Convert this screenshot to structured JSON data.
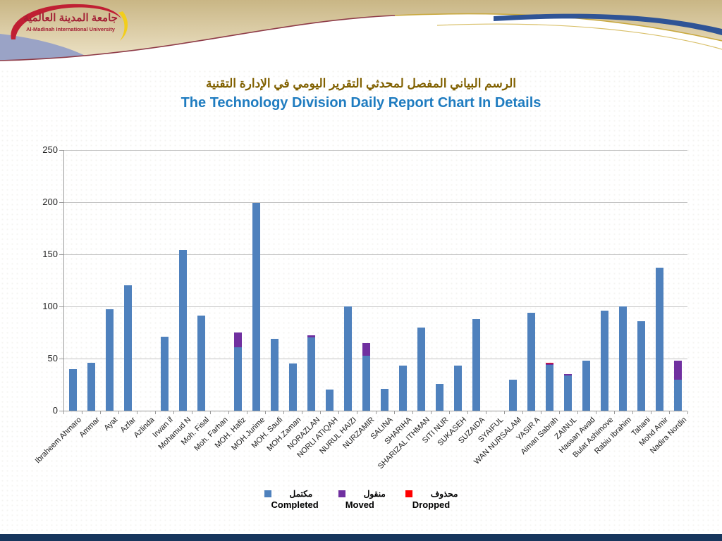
{
  "header": {
    "logo_arabic": "جامعة المدينة العالمية",
    "logo_english": "Al-Madinah International University"
  },
  "title": {
    "arabic": "الرسم البياني المفصل لمحدثي التقرير اليومي في الإدارة التقنية",
    "english": "The Technology Division Daily Report Chart In Details"
  },
  "chart_data": {
    "type": "bar",
    "stacked": true,
    "grid": true,
    "legend_position": "bottom",
    "ylim": [
      0,
      250
    ],
    "yticks": [
      0,
      50,
      100,
      150,
      200,
      250
    ],
    "categories": [
      "Ibraheem Ahmaro",
      "Ammar",
      "Ayat",
      "Azfar",
      "Azlinda",
      "Irwan if",
      "Mohamud N",
      "Moh. Fisal",
      "Moh. Farhan",
      "MOH. Hafiz",
      "MOH.Jurime",
      "MOH. Saufi",
      "MOH.Zaman",
      "NORAZLAN",
      "NORLI ATIQAH",
      "NURUL HAIZI",
      "NURZAMIR",
      "SALINA",
      "SHARIHA",
      "SHARIZAL ITHMAN",
      "SITI NUR",
      "SUKASEH",
      "SUZAIDA",
      "SYAIFUL",
      "WAN NURSALAM",
      "YASIR A",
      "Aiman Sabrah",
      "ZAINUL",
      "Hassan Awad",
      "Bulat Ashimove",
      "Rabiu Ibrahim",
      "Tahani",
      "Mohd Amir",
      "Nadira Nordin"
    ],
    "series": [
      {
        "name": "Completed",
        "name_arabic": "مكتمل",
        "color": "#4F81BD",
        "values": [
          40,
          46,
          97,
          120,
          0,
          71,
          154,
          91,
          0,
          61,
          199,
          69,
          45,
          70,
          20,
          100,
          53,
          21,
          43,
          80,
          26,
          43,
          88,
          0,
          30,
          94,
          44,
          34,
          48,
          96,
          100,
          86,
          137,
          30
        ]
      },
      {
        "name": "Moved",
        "name_arabic": "منقول",
        "color": "#7030A0",
        "values": [
          0,
          0,
          0,
          0,
          0,
          0,
          0,
          0,
          0,
          14,
          0,
          0,
          0,
          2,
          0,
          0,
          12,
          0,
          0,
          0,
          0,
          0,
          0,
          0,
          0,
          0,
          1,
          1,
          0,
          0,
          0,
          0,
          0,
          18
        ]
      },
      {
        "name": "Dropped",
        "name_arabic": "محذوف",
        "color": "#FF0000",
        "values": [
          0,
          0,
          0,
          0,
          0,
          0,
          0,
          0,
          0,
          0,
          0,
          0,
          0,
          0,
          0,
          0,
          0,
          0,
          0,
          0,
          0,
          0,
          0,
          0,
          0,
          0,
          1,
          0,
          0,
          0,
          0,
          0,
          0,
          0
        ]
      }
    ]
  },
  "colors": {
    "footer_bar": "#17365D",
    "title_english": "#1F7CC0",
    "title_arabic": "#806000"
  }
}
